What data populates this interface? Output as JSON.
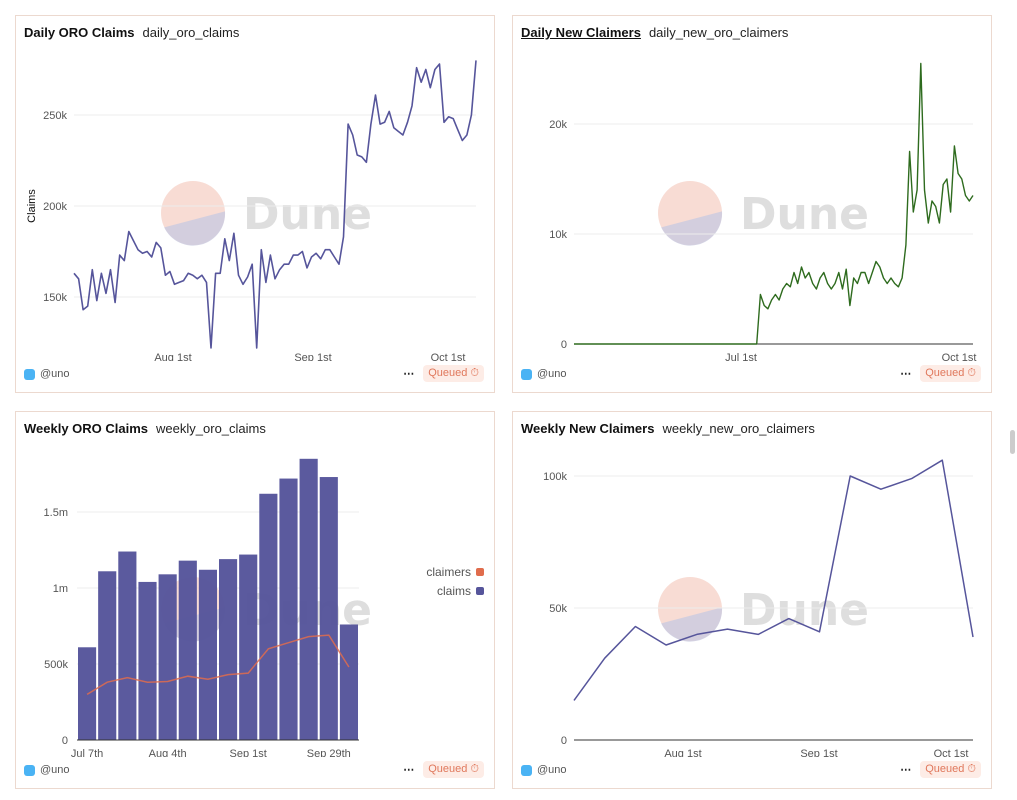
{
  "colors": {
    "purple": "#56559b",
    "green": "#2e6b1e",
    "orange": "#e06c4c",
    "grid": "#ececec",
    "border": "#ecd9cf"
  },
  "watermark": "Dune",
  "panels": [
    {
      "title": "Daily ORO Claims",
      "query": "daily_oro_claims",
      "author": "@uno",
      "status": "Queued",
      "more": "⋯"
    },
    {
      "title": "Daily New Claimers",
      "query": "daily_new_oro_claimers",
      "author": "@uno",
      "status": "Queued",
      "more": "⋯"
    },
    {
      "title": "Weekly ORO Claims",
      "query": "weekly_oro_claims",
      "author": "@uno",
      "status": "Queued",
      "more": "⋯"
    },
    {
      "title": "Weekly New Claimers",
      "query": "weekly_new_oro_claimers",
      "author": "@uno",
      "status": "Queued",
      "more": "⋯"
    }
  ],
  "chart_data": [
    {
      "type": "line",
      "ylabel": "Claims",
      "xlabel": "",
      "yticks": [
        {
          "v": 150000,
          "label": "150k"
        },
        {
          "v": 200000,
          "label": "200k"
        },
        {
          "v": 250000,
          "label": "250k"
        }
      ],
      "ylim": [
        122000,
        280000
      ],
      "xticks": [
        "Aug 1st",
        "Sep 1st",
        "Oct 1st"
      ],
      "x_range": [
        "Jul 10",
        "Oct 7"
      ],
      "color": "#56559b",
      "values": [
        163,
        160,
        143,
        145,
        165,
        148,
        163,
        152,
        165,
        147,
        173,
        170,
        186,
        181,
        176,
        174,
        175,
        172,
        180,
        177,
        162,
        164,
        157,
        158,
        159,
        163,
        162,
        160,
        162,
        158,
        122,
        163,
        163,
        182,
        170,
        185,
        162,
        157,
        161,
        168,
        122,
        176,
        158,
        173,
        160,
        165,
        168,
        168,
        173,
        173,
        175,
        166,
        172,
        174,
        171,
        176,
        176,
        172,
        168,
        183,
        245,
        239,
        228,
        227,
        224,
        245,
        261,
        245,
        246,
        252,
        243,
        241,
        239,
        246,
        255,
        276,
        268,
        275,
        265,
        275,
        278,
        246,
        249,
        248,
        242,
        236,
        239,
        250,
        280
      ],
      "value_unit": "thousands"
    },
    {
      "type": "line",
      "xlabel": "",
      "ylabel": "",
      "yticks": [
        {
          "v": 0,
          "label": "0"
        },
        {
          "v": 10000,
          "label": "10k"
        },
        {
          "v": 20000,
          "label": "20k"
        }
      ],
      "ylim": [
        0,
        26000
      ],
      "xticks": [
        "Jul 1st",
        "Oct 1st"
      ],
      "x_range": [
        "Apr 22",
        "Oct 7"
      ],
      "color": "#2e6b1e",
      "values": [
        0,
        0,
        0,
        0,
        0,
        0,
        0,
        0,
        0,
        0,
        0,
        0,
        0,
        0,
        0,
        0,
        0,
        0,
        0,
        0,
        0,
        0,
        0,
        0,
        0,
        0,
        0,
        0,
        0,
        0,
        0,
        0,
        0,
        0,
        0,
        0,
        0,
        0,
        0,
        0,
        0,
        0,
        0,
        0,
        0,
        0,
        0,
        0,
        0,
        0,
        4.5,
        3.5,
        3.2,
        4,
        4.5,
        4,
        5,
        5.5,
        5.2,
        6.5,
        5.5,
        7,
        6,
        6.5,
        5.5,
        5,
        6,
        6.5,
        5.5,
        5,
        5.5,
        6.5,
        5,
        6.8,
        3.5,
        6,
        5.5,
        6.5,
        6.5,
        5.5,
        6.5,
        7.5,
        7,
        6,
        5.5,
        6,
        5.5,
        5.2,
        6,
        9,
        17.5,
        12,
        14,
        25.5,
        14,
        11,
        13,
        12.5,
        11,
        14.5,
        15,
        12,
        18,
        15.5,
        15,
        13.5,
        13,
        13.5
      ],
      "value_unit": "thousands"
    },
    {
      "type": "bar",
      "xlabel": "",
      "ylabel": "",
      "yticks": [
        {
          "v": 0,
          "label": "0"
        },
        {
          "v": 500000,
          "label": "500k"
        },
        {
          "v": 1000000,
          "label": "1m"
        },
        {
          "v": 1500000,
          "label": "1.5m"
        }
      ],
      "ylim": [
        0,
        1900000
      ],
      "xticks": [
        "Jul 7th",
        "Aug 4th",
        "Sep 1st",
        "Sep 29th"
      ],
      "legend": "right",
      "series": [
        {
          "name": "claimers",
          "type": "line",
          "color": "#e06c4c",
          "values": [
            300000,
            380000,
            410000,
            380000,
            385000,
            420000,
            400000,
            430000,
            440000,
            600000,
            640000,
            680000,
            690000,
            480000
          ]
        },
        {
          "name": "claims",
          "type": "bar",
          "color": "#56559b",
          "values": [
            610000,
            1110000,
            1240000,
            1040000,
            1090000,
            1180000,
            1120000,
            1190000,
            1220000,
            1620000,
            1720000,
            1850000,
            1730000,
            760000
          ]
        }
      ]
    },
    {
      "type": "line",
      "xlabel": "",
      "ylabel": "",
      "yticks": [
        {
          "v": 0,
          "label": "0"
        },
        {
          "v": 50000,
          "label": "50k"
        },
        {
          "v": 100000,
          "label": "100k"
        }
      ],
      "ylim": [
        0,
        110000
      ],
      "xticks": [
        "Aug 1st",
        "Sep 1st",
        "Oct 1st"
      ],
      "color": "#56559b",
      "values": [
        15000,
        31000,
        43000,
        36000,
        40000,
        42000,
        40000,
        46000,
        41000,
        100000,
        95000,
        99000,
        106000,
        39000
      ]
    }
  ]
}
